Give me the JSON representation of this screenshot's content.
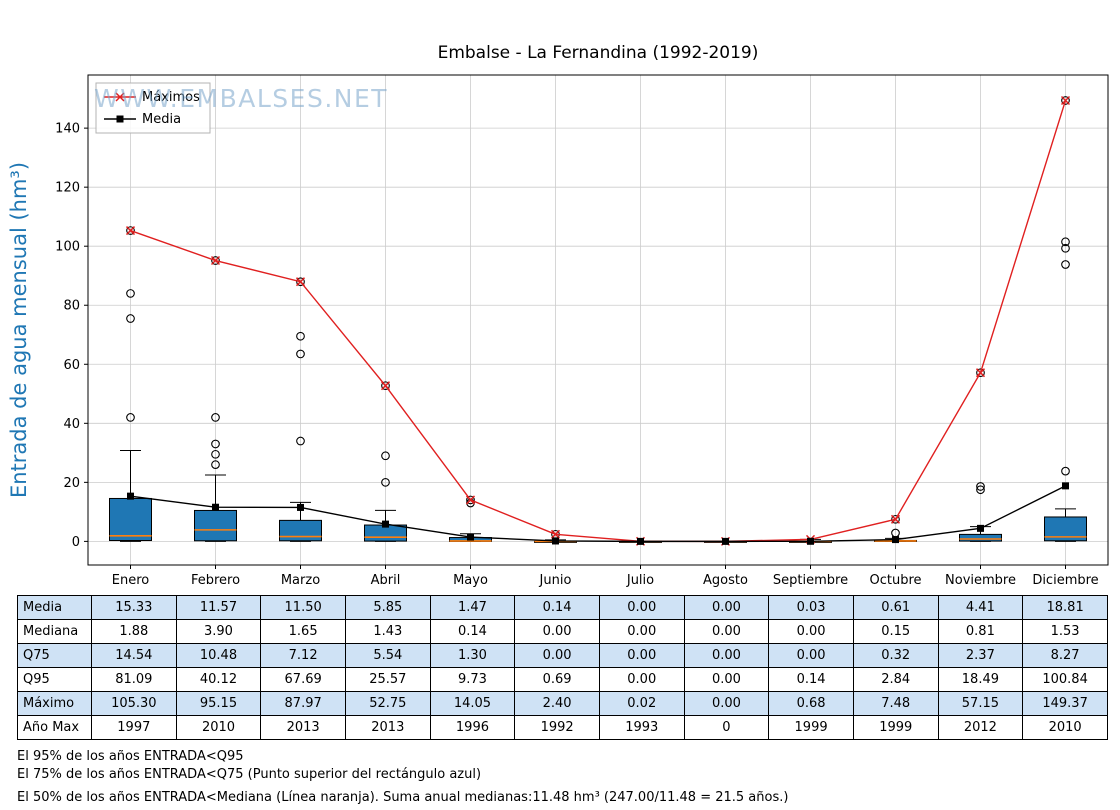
{
  "title": "Embalse - La Fernandina (1992-2019)",
  "watermark": "WWW.EMBALSES.NET",
  "ylabel": "Entrada de agua mensual (hm³)",
  "legend": {
    "maximos": "Máximos",
    "media": "Media"
  },
  "colors": {
    "axis_label_blue": "#1f77b4",
    "box_fill_blue": "#1f77b4",
    "median_orange": "#ff7f0e",
    "maximos_red": "#e02020",
    "media_black": "#000000",
    "table_row_blue": "#cfe2f5"
  },
  "chart_data": {
    "type": "boxplot",
    "title": "Embalse - La Fernandina (1992-2019)",
    "ylabel": "Entrada de agua mensual (hm³)",
    "categories": [
      "Enero",
      "Febrero",
      "Marzo",
      "Abril",
      "Mayo",
      "Junio",
      "Julio",
      "Agosto",
      "Septiembre",
      "Octubre",
      "Noviembre",
      "Diciembre"
    ],
    "yticks": [
      0,
      20,
      40,
      60,
      80,
      100,
      120,
      140
    ],
    "ylim": [
      -8,
      158
    ],
    "grid": true,
    "legend_position": "upper-left",
    "series": [
      {
        "name": "Máximos",
        "marker": "x",
        "color": "#e02020",
        "values": [
          105.3,
          95.15,
          87.97,
          52.75,
          14.05,
          2.4,
          0.02,
          0.0,
          0.68,
          7.48,
          57.15,
          149.37
        ]
      },
      {
        "name": "Media",
        "marker": "square",
        "color": "#000000",
        "values": [
          15.33,
          11.57,
          11.5,
          5.85,
          1.47,
          0.14,
          0.0,
          0.0,
          0.03,
          0.61,
          4.41,
          18.81
        ]
      }
    ],
    "boxes": [
      {
        "month": "Enero",
        "q1": 0.3,
        "median": 1.88,
        "q3": 14.54,
        "whislo": 0,
        "whishi": 30.8,
        "outliers": [
          42,
          75.5,
          84,
          105.3
        ]
      },
      {
        "month": "Febrero",
        "q1": 0.2,
        "median": 3.9,
        "q3": 10.48,
        "whislo": 0,
        "whishi": 22.5,
        "outliers": [
          26,
          29.5,
          33,
          42,
          95.15
        ]
      },
      {
        "month": "Marzo",
        "q1": 0.2,
        "median": 1.65,
        "q3": 7.12,
        "whislo": 0,
        "whishi": 13.2,
        "outliers": [
          34,
          63.5,
          69.5,
          87.97
        ]
      },
      {
        "month": "Abril",
        "q1": 0.1,
        "median": 1.43,
        "q3": 5.54,
        "whislo": 0,
        "whishi": 10.5,
        "outliers": [
          20,
          29,
          52.75
        ]
      },
      {
        "month": "Mayo",
        "q1": 0,
        "median": 0.14,
        "q3": 1.3,
        "whislo": 0,
        "whishi": 2.6,
        "outliers": [
          13,
          14.05
        ]
      },
      {
        "month": "Junio",
        "q1": 0,
        "median": 0.0,
        "q3": 0.0,
        "whislo": 0,
        "whishi": 0.5,
        "outliers": [
          2.4
        ]
      },
      {
        "month": "Julio",
        "q1": 0,
        "median": 0.0,
        "q3": 0.0,
        "whislo": 0,
        "whishi": 0.02,
        "outliers": []
      },
      {
        "month": "Agosto",
        "q1": 0,
        "median": 0.0,
        "q3": 0.0,
        "whislo": 0,
        "whishi": 0.0,
        "outliers": []
      },
      {
        "month": "Septiembre",
        "q1": 0,
        "median": 0.0,
        "q3": 0.0,
        "whislo": 0,
        "whishi": 0.68,
        "outliers": []
      },
      {
        "month": "Octubre",
        "q1": 0,
        "median": 0.15,
        "q3": 0.32,
        "whislo": 0,
        "whishi": 1.0,
        "outliers": [
          2.84,
          7.48
        ]
      },
      {
        "month": "Noviembre",
        "q1": 0.1,
        "median": 0.81,
        "q3": 2.37,
        "whislo": 0,
        "whishi": 5.0,
        "outliers": [
          17.5,
          18.6,
          57.15
        ]
      },
      {
        "month": "Diciembre",
        "q1": 0.2,
        "median": 1.53,
        "q3": 8.27,
        "whislo": 0,
        "whishi": 11.0,
        "outliers": [
          23.8,
          93.8,
          99.3,
          101.5,
          149.37
        ]
      }
    ]
  },
  "table": {
    "columns": [
      "Enero",
      "Febrero",
      "Marzo",
      "Abril",
      "Mayo",
      "Junio",
      "Julio",
      "Agosto",
      "Septiembre",
      "Octubre",
      "Noviembre",
      "Diciembre"
    ],
    "rows": [
      {
        "label": "Media",
        "values": [
          "15.33",
          "11.57",
          "11.50",
          "5.85",
          "1.47",
          "0.14",
          "0.00",
          "0.00",
          "0.03",
          "0.61",
          "4.41",
          "18.81"
        ]
      },
      {
        "label": "Mediana",
        "values": [
          "1.88",
          "3.90",
          "1.65",
          "1.43",
          "0.14",
          "0.00",
          "0.00",
          "0.00",
          "0.00",
          "0.15",
          "0.81",
          "1.53"
        ]
      },
      {
        "label": "Q75",
        "values": [
          "14.54",
          "10.48",
          "7.12",
          "5.54",
          "1.30",
          "0.00",
          "0.00",
          "0.00",
          "0.00",
          "0.32",
          "2.37",
          "8.27"
        ]
      },
      {
        "label": "Q95",
        "values": [
          "81.09",
          "40.12",
          "67.69",
          "25.57",
          "9.73",
          "0.69",
          "0.00",
          "0.00",
          "0.14",
          "2.84",
          "18.49",
          "100.84"
        ]
      },
      {
        "label": "Máximo",
        "values": [
          "105.30",
          "95.15",
          "87.97",
          "52.75",
          "14.05",
          "2.40",
          "0.02",
          "0.00",
          "0.68",
          "7.48",
          "57.15",
          "149.37"
        ]
      },
      {
        "label": "Año Max",
        "values": [
          "1997",
          "2010",
          "2013",
          "2013",
          "1996",
          "1992",
          "1993",
          "0",
          "1999",
          "1999",
          "2012",
          "2010"
        ]
      }
    ]
  },
  "footnotes": [
    "El 95% de los años ENTRADA<Q95",
    "El 75% de los años ENTRADA<Q75 (Punto superior del rectángulo azul)",
    "El 50% de los años ENTRADA<Mediana (Línea naranja). Suma anual medianas:11.48 hm³ (247.00/11.48 = 21.5 años.)"
  ]
}
